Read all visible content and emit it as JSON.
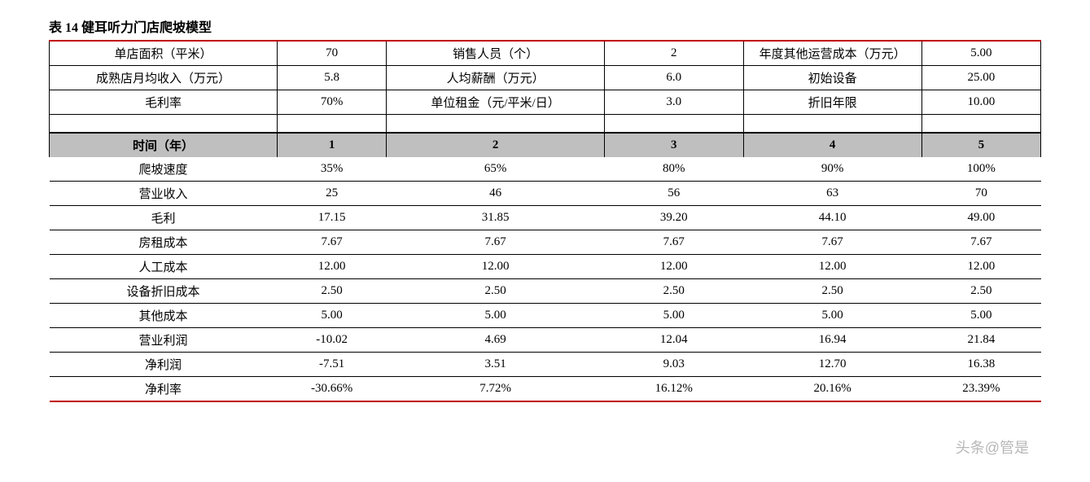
{
  "title": "表 14 健耳听力门店爬坡模型",
  "params": [
    [
      {
        "label": "单店面积（平米）",
        "value": "70"
      },
      {
        "label": "销售人员（个）",
        "value": "2"
      },
      {
        "label": "年度其他运营成本（万元）",
        "value": "5.00"
      }
    ],
    [
      {
        "label": "成熟店月均收入（万元）",
        "value": "5.8"
      },
      {
        "label": "人均薪酬（万元）",
        "value": "6.0"
      },
      {
        "label": "初始设备",
        "value": "25.00"
      }
    ],
    [
      {
        "label": "毛利率",
        "value": "70%"
      },
      {
        "label": "单位租金（元/平米/日）",
        "value": "3.0"
      },
      {
        "label": "折旧年限",
        "value": "10.00"
      }
    ]
  ],
  "years_header": {
    "label": "时间（年）",
    "cols": [
      "1",
      "2",
      "3",
      "4",
      "5"
    ]
  },
  "metrics": [
    {
      "label": "爬坡速度",
      "values": [
        "35%",
        "65%",
        "80%",
        "90%",
        "100%"
      ]
    },
    {
      "label": "营业收入",
      "values": [
        "25",
        "46",
        "56",
        "63",
        "70"
      ]
    },
    {
      "label": "毛利",
      "values": [
        "17.15",
        "31.85",
        "39.20",
        "44.10",
        "49.00"
      ]
    },
    {
      "label": "房租成本",
      "values": [
        "7.67",
        "7.67",
        "7.67",
        "7.67",
        "7.67"
      ]
    },
    {
      "label": "人工成本",
      "values": [
        "12.00",
        "12.00",
        "12.00",
        "12.00",
        "12.00"
      ]
    },
    {
      "label": "设备折旧成本",
      "values": [
        "2.50",
        "2.50",
        "2.50",
        "2.50",
        "2.50"
      ]
    },
    {
      "label": "其他成本",
      "values": [
        "5.00",
        "5.00",
        "5.00",
        "5.00",
        "5.00"
      ]
    },
    {
      "label": "营业利润",
      "values": [
        "-10.02",
        "4.69",
        "12.04",
        "16.94",
        "21.84"
      ]
    },
    {
      "label": "净利润",
      "values": [
        "-7.51",
        "3.51",
        "9.03",
        "12.70",
        "16.38"
      ]
    },
    {
      "label": "净利率",
      "values": [
        "-30.66%",
        "7.72%",
        "16.12%",
        "20.16%",
        "23.39%"
      ]
    }
  ],
  "watermark": "头条@管是",
  "colors": {
    "accent": "#c00000",
    "header_bg": "#bfbfbf",
    "border": "#000000",
    "background": "#ffffff"
  }
}
